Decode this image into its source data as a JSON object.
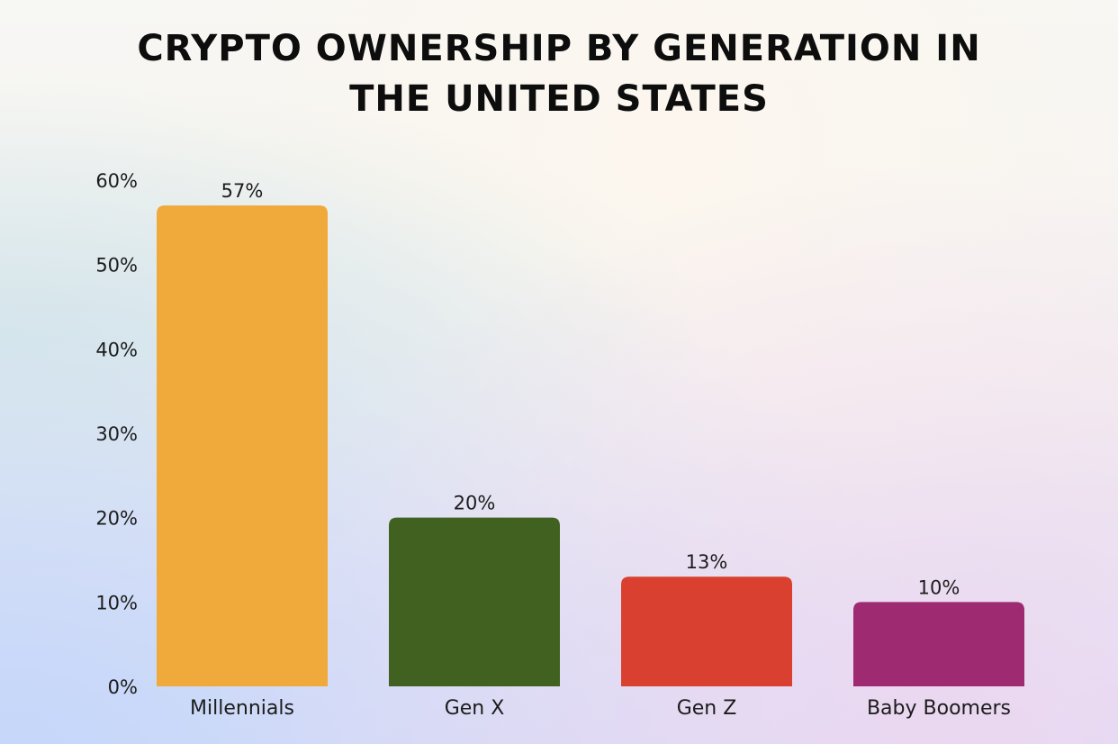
{
  "chart_data": {
    "type": "bar",
    "title": "Crypto Ownership by Generation in the United States",
    "categories": [
      "Millennials",
      "Gen X",
      "Gen Z",
      "Baby Boomers"
    ],
    "values": [
      57,
      20,
      13,
      10
    ],
    "data_labels": [
      "57%",
      "20%",
      "13%",
      "10%"
    ],
    "bar_colors": [
      "#f0a93b",
      "#40611f",
      "#d9402f",
      "#9e2a72"
    ],
    "ylim": [
      0,
      60
    ],
    "yticks": [
      0,
      10,
      20,
      30,
      40,
      50,
      60
    ],
    "ytick_labels": [
      "0%",
      "10%",
      "20%",
      "30%",
      "40%",
      "50%",
      "60%"
    ],
    "grid": false,
    "legend": "none"
  }
}
